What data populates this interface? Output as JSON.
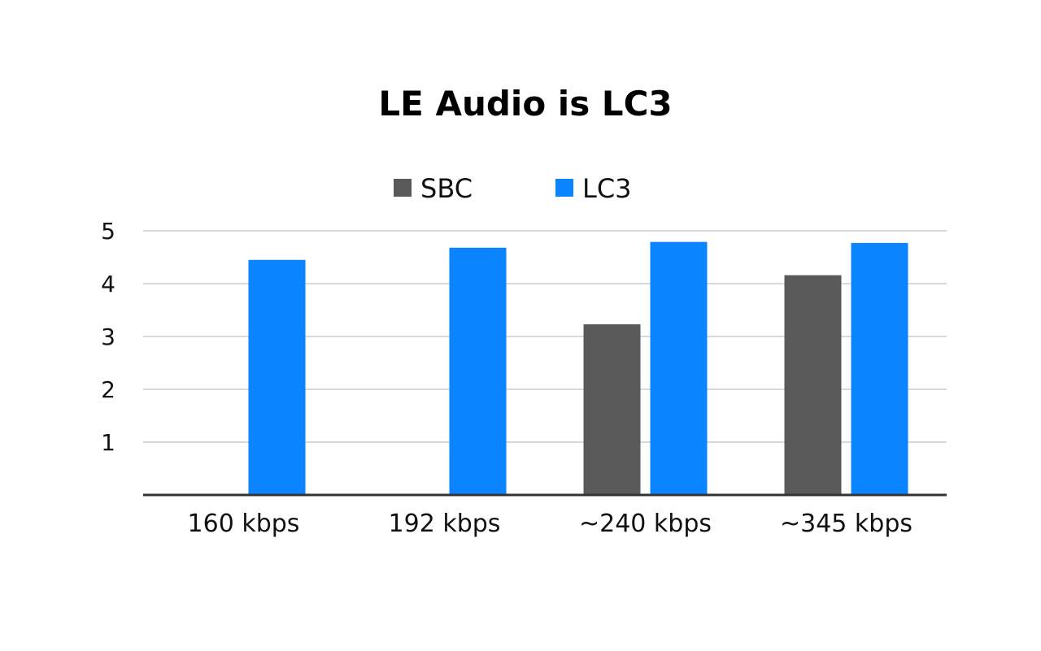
{
  "chart_data": {
    "type": "bar",
    "title": "LE Audio is LC3",
    "xlabel": "",
    "ylabel": "",
    "categories": [
      "160 kbps",
      "192 kbps",
      "~240 kbps",
      "~345 kbps"
    ],
    "series": [
      {
        "name": "SBC",
        "color": "#595959",
        "values": [
          null,
          null,
          3.23,
          4.16
        ]
      },
      {
        "name": "LC3",
        "color": "#0A84FF",
        "values": [
          4.45,
          4.68,
          4.79,
          4.77
        ]
      }
    ],
    "ylim": [
      0,
      5
    ],
    "yticks": [
      1,
      2,
      3,
      4,
      5
    ],
    "grid": true,
    "legend_position": "top-center"
  }
}
